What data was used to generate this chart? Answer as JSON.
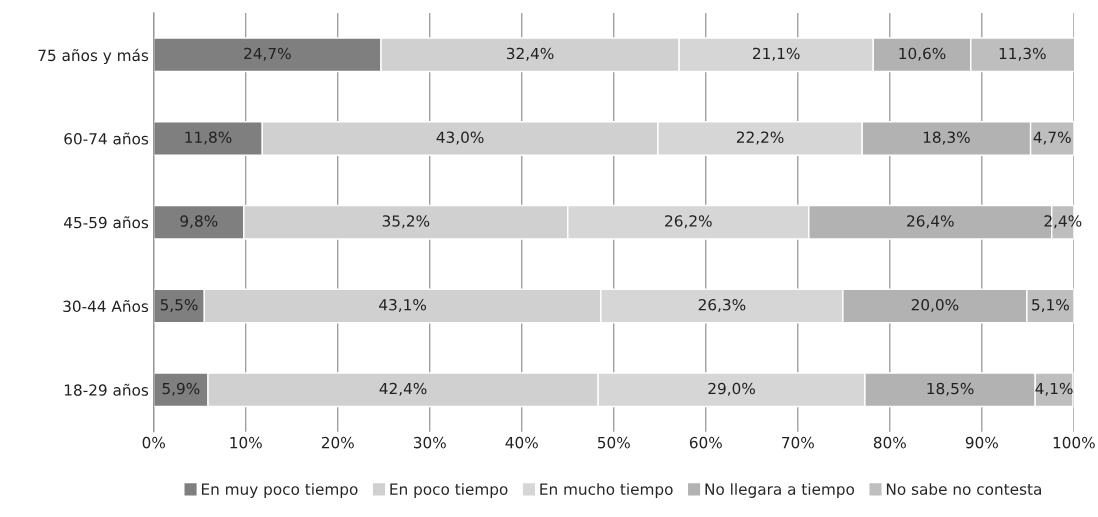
{
  "chart_data": {
    "type": "bar",
    "orientation": "horizontal",
    "stacked": true,
    "categories": [
      "75 años y más",
      "60-74 años",
      "45-59 años",
      "30-44 Años",
      "18-29 años"
    ],
    "series": [
      {
        "name": "En muy poco tiempo",
        "color": "#7f7f7f",
        "values": [
          24.7,
          11.8,
          9.8,
          5.5,
          5.9
        ],
        "value_labels": [
          "24,7%",
          "11,8%",
          "9,8%",
          "5,5%",
          "5,9%"
        ]
      },
      {
        "name": "En poco tiempo",
        "color": "#d0d0d0",
        "values": [
          32.4,
          43.0,
          35.2,
          43.1,
          42.4
        ],
        "value_labels": [
          "32,4%",
          "43,0%",
          "35,2%",
          "43,1%",
          "42,4%"
        ]
      },
      {
        "name": "En mucho tiempo",
        "color": "#d6d6d6",
        "values": [
          21.1,
          22.2,
          26.2,
          26.3,
          29.0
        ],
        "value_labels": [
          "21,1%",
          "22,2%",
          "26,2%",
          "26,3%",
          "29,0%"
        ]
      },
      {
        "name": "No llegara a tiempo",
        "color": "#b2b2b2",
        "values": [
          10.6,
          18.3,
          26.4,
          20.0,
          18.5
        ],
        "value_labels": [
          "10,6%",
          "18,3%",
          "26,4%",
          "20,0%",
          "18,5%"
        ]
      },
      {
        "name": "No sabe no contesta",
        "color": "#bebebe",
        "values": [
          11.3,
          4.7,
          2.4,
          5.1,
          4.1
        ],
        "value_labels": [
          "11,3%",
          "4,7%",
          "2,4%",
          "5,1%",
          "4,1%"
        ]
      }
    ],
    "xlim": [
      0,
      100
    ],
    "xticks": [
      {
        "value": 0,
        "label": "0%"
      },
      {
        "value": 10,
        "label": "10%"
      },
      {
        "value": 20,
        "label": "20%"
      },
      {
        "value": 30,
        "label": "30%"
      },
      {
        "value": 40,
        "label": "40%"
      },
      {
        "value": 50,
        "label": "50%"
      },
      {
        "value": 60,
        "label": "60%"
      },
      {
        "value": 70,
        "label": "70%"
      },
      {
        "value": 80,
        "label": "80%"
      },
      {
        "value": 90,
        "label": "90%"
      },
      {
        "value": 100,
        "label": "100%"
      }
    ],
    "grid": "x",
    "legend": "bottom"
  }
}
